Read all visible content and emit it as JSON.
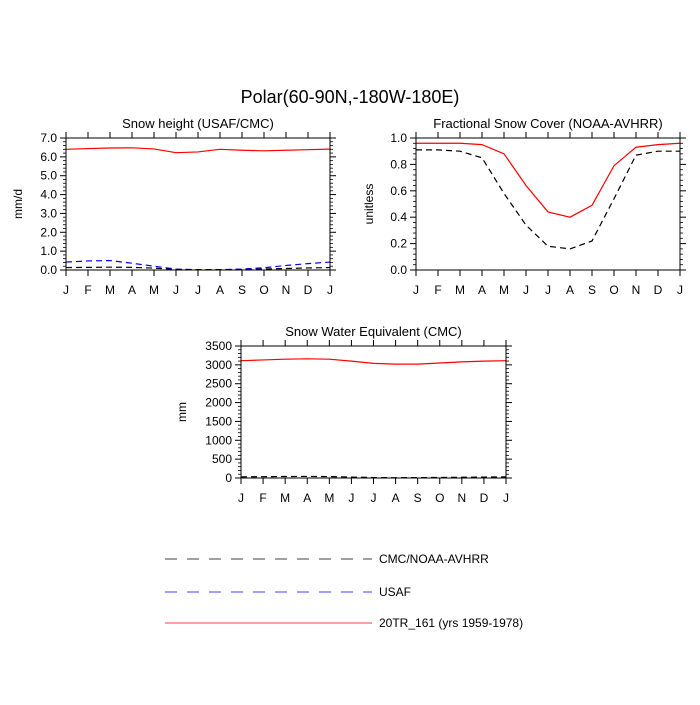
{
  "figure": {
    "title": "Polar(60-90N,-180W-180E)"
  },
  "legend": [
    {
      "label": "CMC/NOAA-AVHRR",
      "color": "#000000",
      "dash": "dash"
    },
    {
      "label": "USAF",
      "color": "#0000ff",
      "dash": "dash"
    },
    {
      "label": "20TR_161 (yrs 1959-1978)",
      "color": "#ff0000",
      "dash": "solid"
    }
  ],
  "chart_data": [
    {
      "type": "line",
      "title": "Snow height (USAF/CMC)",
      "xlabel": "",
      "ylabel": "mm/d",
      "categories": [
        "J",
        "F",
        "M",
        "A",
        "M",
        "J",
        "J",
        "A",
        "S",
        "O",
        "N",
        "D",
        "J"
      ],
      "ylim": [
        0,
        7.0
      ],
      "yticks": [
        0.0,
        1.0,
        2.0,
        3.0,
        4.0,
        5.0,
        6.0,
        7.0
      ],
      "ytick_labels": [
        "0.0",
        "1.0",
        "2.0",
        "3.0",
        "4.0",
        "5.0",
        "6.0",
        "7.0"
      ],
      "grid": false,
      "series": [
        {
          "name": "20TR_161 (yrs 1959-1978)",
          "color": "#ff0000",
          "dash": "solid",
          "values": [
            6.4,
            6.44,
            6.47,
            6.48,
            6.42,
            6.22,
            6.26,
            6.4,
            6.35,
            6.32,
            6.35,
            6.38,
            6.41
          ]
        },
        {
          "name": "USAF",
          "color": "#0000ff",
          "dash": "dash",
          "values": [
            0.42,
            0.48,
            0.5,
            0.36,
            0.2,
            0.05,
            0.02,
            0.02,
            0.05,
            0.12,
            0.24,
            0.34,
            0.42
          ]
        },
        {
          "name": "CMC/NOAA-AVHRR",
          "color": "#000000",
          "dash": "dash",
          "values": [
            0.13,
            0.14,
            0.15,
            0.14,
            0.1,
            0.03,
            0.01,
            0.01,
            0.02,
            0.05,
            0.08,
            0.11,
            0.13
          ]
        }
      ]
    },
    {
      "type": "line",
      "title": "Fractional Snow Cover (NOAA-AVHRR)",
      "xlabel": "",
      "ylabel": "unitless",
      "categories": [
        "J",
        "F",
        "M",
        "A",
        "M",
        "J",
        "J",
        "A",
        "S",
        "O",
        "N",
        "D",
        "J"
      ],
      "ylim": [
        0,
        1.0
      ],
      "yticks": [
        0.0,
        0.2,
        0.4,
        0.6,
        0.8,
        1.0
      ],
      "ytick_labels": [
        "0.0",
        "0.2",
        "0.4",
        "0.6",
        "0.8",
        "1.0"
      ],
      "grid": false,
      "series": [
        {
          "name": "20TR_161 (yrs 1959-1978)",
          "color": "#ff0000",
          "dash": "solid",
          "values": [
            0.96,
            0.96,
            0.96,
            0.95,
            0.88,
            0.64,
            0.44,
            0.4,
            0.49,
            0.79,
            0.93,
            0.95,
            0.96
          ]
        },
        {
          "name": "CMC/NOAA-AVHRR",
          "color": "#000000",
          "dash": "dash",
          "values": [
            0.91,
            0.91,
            0.9,
            0.85,
            0.58,
            0.34,
            0.18,
            0.16,
            0.22,
            0.54,
            0.87,
            0.9,
            0.9
          ]
        }
      ]
    },
    {
      "type": "line",
      "title": "Snow Water Equivalent (CMC)",
      "xlabel": "",
      "ylabel": "mm",
      "categories": [
        "J",
        "F",
        "M",
        "A",
        "M",
        "J",
        "J",
        "A",
        "S",
        "O",
        "N",
        "D",
        "J"
      ],
      "ylim": [
        0,
        3500
      ],
      "yticks": [
        0,
        500,
        1000,
        1500,
        2000,
        2500,
        3000,
        3500
      ],
      "ytick_labels": [
        "0",
        "500",
        "1000",
        "1500",
        "2000",
        "2500",
        "3000",
        "3500"
      ],
      "grid": false,
      "series": [
        {
          "name": "20TR_161 (yrs 1959-1978)",
          "color": "#ff0000",
          "dash": "solid",
          "values": [
            3110,
            3130,
            3150,
            3160,
            3150,
            3100,
            3040,
            3020,
            3020,
            3050,
            3080,
            3100,
            3110
          ]
        },
        {
          "name": "CMC/NOAA-AVHRR",
          "color": "#000000",
          "dash": "dash",
          "values": [
            30,
            35,
            40,
            42,
            38,
            25,
            12,
            8,
            10,
            15,
            20,
            25,
            30
          ]
        }
      ]
    }
  ]
}
